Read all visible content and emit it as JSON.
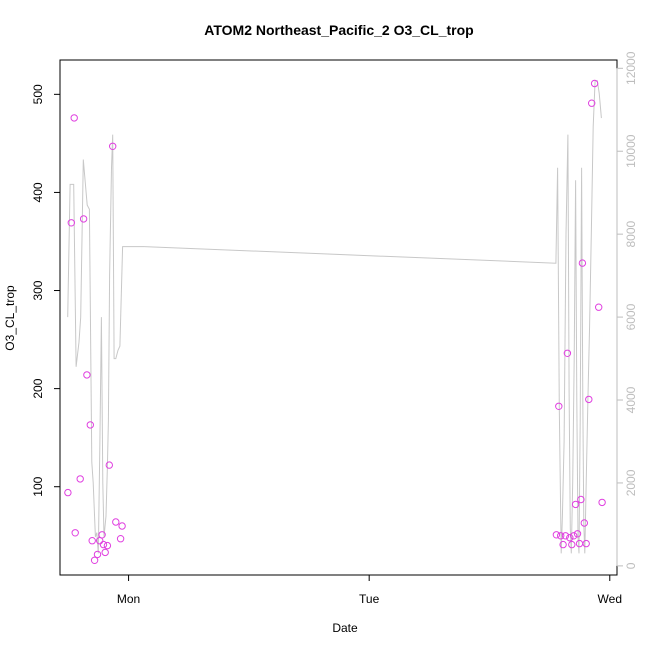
{
  "chart_data": {
    "type": "scatter",
    "title": "ATOM2 Northeast_Pacific_2 O3_CL_trop",
    "xlabel": "Date",
    "ylabel": "O3_CL_trop",
    "xlim": [
      -0.285,
      2.03
    ],
    "ylim": [
      10,
      535
    ],
    "y2lim": [
      -220,
      12200
    ],
    "x_ticks": [
      {
        "value": 0,
        "label": "Mon"
      },
      {
        "value": 1,
        "label": "Tue"
      },
      {
        "value": 2,
        "label": "Wed"
      }
    ],
    "y_ticks": [
      100,
      200,
      300,
      400,
      500
    ],
    "y2_ticks": [
      0,
      2000,
      4000,
      6000,
      8000,
      10000,
      12000
    ],
    "grid": false,
    "legend": "none",
    "colors": {
      "points": "#e040e0",
      "line": "#c8c8c8",
      "right_axis": "#bdbdbd",
      "text": "#000000"
    },
    "series": [
      {
        "type": "scatter",
        "axis": "left",
        "points": [
          {
            "x": -0.252,
            "y": 94
          },
          {
            "x": -0.238,
            "y": 369
          },
          {
            "x": -0.226,
            "y": 476
          },
          {
            "x": -0.222,
            "y": 53
          },
          {
            "x": -0.201,
            "y": 108
          },
          {
            "x": -0.187,
            "y": 373
          },
          {
            "x": -0.173,
            "y": 214
          },
          {
            "x": -0.159,
            "y": 163
          },
          {
            "x": -0.151,
            "y": 45
          },
          {
            "x": -0.141,
            "y": 25
          },
          {
            "x": -0.129,
            "y": 31
          },
          {
            "x": -0.12,
            "y": 45
          },
          {
            "x": -0.11,
            "y": 51
          },
          {
            "x": -0.104,
            "y": 41
          },
          {
            "x": -0.097,
            "y": 33
          },
          {
            "x": -0.088,
            "y": 40
          },
          {
            "x": -0.08,
            "y": 122
          },
          {
            "x": -0.066,
            "y": 447
          },
          {
            "x": -0.053,
            "y": 64
          },
          {
            "x": -0.033,
            "y": 47
          },
          {
            "x": -0.027,
            "y": 60
          },
          {
            "x": 1.778,
            "y": 51
          },
          {
            "x": 1.788,
            "y": 182
          },
          {
            "x": 1.796,
            "y": 50
          },
          {
            "x": 1.806,
            "y": 41
          },
          {
            "x": 1.816,
            "y": 50
          },
          {
            "x": 1.824,
            "y": 236
          },
          {
            "x": 1.834,
            "y": 48
          },
          {
            "x": 1.842,
            "y": 41
          },
          {
            "x": 1.85,
            "y": 50
          },
          {
            "x": 1.858,
            "y": 82
          },
          {
            "x": 1.866,
            "y": 52
          },
          {
            "x": 1.874,
            "y": 42
          },
          {
            "x": 1.88,
            "y": 87
          },
          {
            "x": 1.886,
            "y": 328
          },
          {
            "x": 1.894,
            "y": 63
          },
          {
            "x": 1.902,
            "y": 42
          },
          {
            "x": 1.913,
            "y": 189
          },
          {
            "x": 1.925,
            "y": 491
          },
          {
            "x": 1.937,
            "y": 511
          },
          {
            "x": 1.954,
            "y": 283
          },
          {
            "x": 1.968,
            "y": 84
          }
        ]
      },
      {
        "type": "line",
        "axis": "right",
        "points": [
          {
            "x": -0.253,
            "y": 6000
          },
          {
            "x": -0.243,
            "y": 9200
          },
          {
            "x": -0.228,
            "y": 9200
          },
          {
            "x": -0.218,
            "y": 4800
          },
          {
            "x": -0.206,
            "y": 5400
          },
          {
            "x": -0.199,
            "y": 6000
          },
          {
            "x": -0.188,
            "y": 9800
          },
          {
            "x": -0.172,
            "y": 8700
          },
          {
            "x": -0.163,
            "y": 8600
          },
          {
            "x": -0.153,
            "y": 2500
          },
          {
            "x": -0.147,
            "y": 2000
          },
          {
            "x": -0.138,
            "y": 700
          },
          {
            "x": -0.132,
            "y": 800
          },
          {
            "x": -0.126,
            "y": 300
          },
          {
            "x": -0.119,
            "y": 3000
          },
          {
            "x": -0.113,
            "y": 6000
          },
          {
            "x": -0.107,
            "y": 2000
          },
          {
            "x": -0.102,
            "y": 700
          },
          {
            "x": -0.094,
            "y": 1200
          },
          {
            "x": -0.088,
            "y": 2400
          },
          {
            "x": -0.084,
            "y": 3500
          },
          {
            "x": -0.079,
            "y": 7000
          },
          {
            "x": -0.071,
            "y": 9600
          },
          {
            "x": -0.066,
            "y": 10400
          },
          {
            "x": -0.06,
            "y": 5000
          },
          {
            "x": -0.053,
            "y": 5000
          },
          {
            "x": -0.044,
            "y": 5200
          },
          {
            "x": -0.036,
            "y": 5300
          },
          {
            "x": -0.025,
            "y": 7700
          },
          {
            "x": 0.065,
            "y": 7700
          },
          {
            "x": 1.776,
            "y": 7300
          },
          {
            "x": 1.783,
            "y": 9600
          },
          {
            "x": 1.79,
            "y": 3800
          },
          {
            "x": 1.798,
            "y": 300
          },
          {
            "x": 1.803,
            "y": 1200
          },
          {
            "x": 1.81,
            "y": 3000
          },
          {
            "x": 1.818,
            "y": 8000
          },
          {
            "x": 1.826,
            "y": 10400
          },
          {
            "x": 1.831,
            "y": 4200
          },
          {
            "x": 1.836,
            "y": 900
          },
          {
            "x": 1.84,
            "y": 300
          },
          {
            "x": 1.846,
            "y": 2000
          },
          {
            "x": 1.852,
            "y": 5000
          },
          {
            "x": 1.858,
            "y": 9300
          },
          {
            "x": 1.863,
            "y": 4000
          },
          {
            "x": 1.868,
            "y": 700
          },
          {
            "x": 1.872,
            "y": 300
          },
          {
            "x": 1.877,
            "y": 3500
          },
          {
            "x": 1.883,
            "y": 9600
          },
          {
            "x": 1.888,
            "y": 4000
          },
          {
            "x": 1.892,
            "y": 1000
          },
          {
            "x": 1.896,
            "y": 300
          },
          {
            "x": 1.902,
            "y": 2000
          },
          {
            "x": 1.909,
            "y": 4000
          },
          {
            "x": 1.916,
            "y": 5800
          },
          {
            "x": 1.923,
            "y": 8000
          },
          {
            "x": 1.931,
            "y": 10600
          },
          {
            "x": 1.939,
            "y": 11700
          },
          {
            "x": 1.948,
            "y": 11700
          },
          {
            "x": 1.956,
            "y": 11400
          },
          {
            "x": 1.965,
            "y": 10800
          }
        ]
      }
    ]
  }
}
